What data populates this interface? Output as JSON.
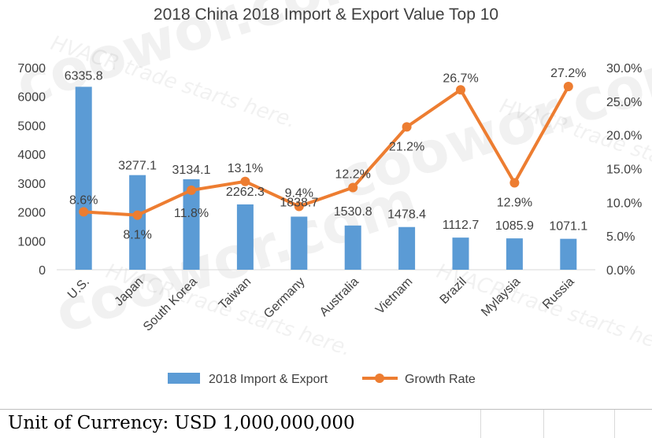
{
  "watermark": {
    "brand": "coowor.com",
    "slogan": "HVACR trade starts here."
  },
  "chart_data": {
    "type": "bar",
    "title": "2018 China 2018 Import & Export Value Top 10",
    "categories": [
      "U.S.",
      "Japan",
      "South Korea",
      "Taiwan",
      "Germany",
      "Australia",
      "Vietnam",
      "Brazil",
      "Mylaysia",
      "Russia"
    ],
    "series": [
      {
        "name": "2018 Import & Export",
        "type": "bar",
        "axis": "left",
        "color": "#5b9bd5",
        "values": [
          6335.8,
          3277.1,
          3134.1,
          2262.3,
          1838.7,
          1530.8,
          1478.4,
          1112.7,
          1085.9,
          1071.1
        ],
        "labels": [
          "6335.8",
          "3277.1",
          "3134.1",
          "2262.3",
          "1838.7",
          "1530.8",
          "1478.4",
          "1112.7",
          "1085.9",
          "1071.1"
        ]
      },
      {
        "name": "Growth Rate",
        "type": "line",
        "axis": "right",
        "color": "#ed7d31",
        "values": [
          8.6,
          8.1,
          11.8,
          13.1,
          9.4,
          12.2,
          21.2,
          26.7,
          12.9,
          27.2
        ],
        "labels": [
          "8.6%",
          "8.1%",
          "11.8%",
          "13.1%",
          "9.4%",
          "12.2%",
          "21.2%",
          "26.7%",
          "12.9%",
          "27.2%"
        ]
      }
    ],
    "y_left": {
      "ylim": [
        0,
        7000
      ],
      "ticks": [
        0,
        1000,
        2000,
        3000,
        4000,
        5000,
        6000,
        7000
      ],
      "tick_labels": [
        "0",
        "1000",
        "2000",
        "3000",
        "4000",
        "5000",
        "6000",
        "7000"
      ]
    },
    "y_right": {
      "ylim": [
        0,
        30
      ],
      "ticks": [
        0,
        5,
        10,
        15,
        20,
        25,
        30
      ],
      "tick_labels": [
        "0.0%",
        "5.0%",
        "10.0%",
        "15.0%",
        "20.0%",
        "25.0%",
        "30.0%"
      ]
    },
    "grid": false,
    "legend_position": "bottom"
  },
  "footer": {
    "note": "Unit of Currency: USD 1,000,000,000"
  }
}
